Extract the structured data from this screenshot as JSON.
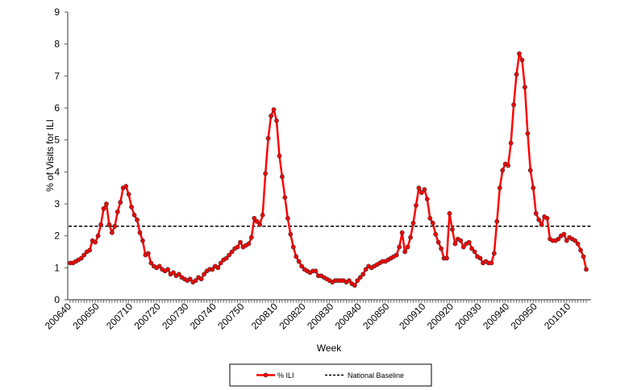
{
  "chart_data": {
    "type": "line",
    "title": "",
    "xlabel": "Week",
    "ylabel": "% of Visits for ILI",
    "ylim": [
      0,
      9
    ],
    "yticks": [
      0,
      1,
      2,
      3,
      4,
      5,
      6,
      7,
      8,
      9
    ],
    "xtick_labels": [
      "200640",
      "200650",
      "200710",
      "200720",
      "200730",
      "200740",
      "200750",
      "200810",
      "200820",
      "200830",
      "200840",
      "200850",
      "200910",
      "200920",
      "200930",
      "200940",
      "200950",
      "201010"
    ],
    "grid": false,
    "legend_position": "bottom",
    "x": [
      "200640",
      "200641",
      "200642",
      "200643",
      "200644",
      "200645",
      "200646",
      "200647",
      "200648",
      "200649",
      "200650",
      "200651",
      "200652",
      "200701",
      "200702",
      "200703",
      "200704",
      "200705",
      "200706",
      "200707",
      "200708",
      "200709",
      "200710",
      "200711",
      "200712",
      "200713",
      "200714",
      "200715",
      "200716",
      "200717",
      "200718",
      "200719",
      "200720",
      "200721",
      "200722",
      "200723",
      "200724",
      "200725",
      "200726",
      "200727",
      "200728",
      "200729",
      "200730",
      "200731",
      "200732",
      "200733",
      "200734",
      "200735",
      "200736",
      "200737",
      "200738",
      "200739",
      "200740",
      "200741",
      "200742",
      "200743",
      "200744",
      "200745",
      "200746",
      "200747",
      "200748",
      "200749",
      "200750",
      "200751",
      "200752",
      "200801",
      "200802",
      "200803",
      "200804",
      "200805",
      "200806",
      "200807",
      "200808",
      "200809",
      "200810",
      "200811",
      "200812",
      "200813",
      "200814",
      "200815",
      "200816",
      "200817",
      "200818",
      "200819",
      "200820",
      "200821",
      "200822",
      "200823",
      "200824",
      "200825",
      "200826",
      "200827",
      "200828",
      "200829",
      "200830",
      "200831",
      "200832",
      "200833",
      "200834",
      "200835",
      "200836",
      "200837",
      "200838",
      "200839",
      "200840",
      "200841",
      "200842",
      "200843",
      "200844",
      "200845",
      "200846",
      "200847",
      "200848",
      "200849",
      "200850",
      "200851",
      "200852",
      "200853",
      "200901",
      "200902",
      "200903",
      "200904",
      "200905",
      "200906",
      "200907",
      "200908",
      "200909",
      "200910",
      "200911",
      "200912",
      "200913",
      "200914",
      "200915",
      "200916",
      "200917",
      "200918",
      "200919",
      "200920",
      "200921",
      "200922",
      "200923",
      "200924",
      "200925",
      "200926",
      "200927",
      "200928",
      "200929",
      "200930",
      "200931",
      "200932",
      "200933",
      "200934",
      "200935",
      "200936",
      "200937",
      "200938",
      "200939",
      "200940",
      "200941",
      "200942",
      "200943",
      "200944",
      "200945",
      "200946",
      "200947",
      "200948",
      "200949",
      "200950",
      "200951",
      "200952",
      "201001",
      "201002",
      "201003",
      "201004",
      "201005",
      "201006",
      "201007",
      "201008",
      "201009",
      "201010",
      "201011",
      "201012",
      "201013",
      "201014",
      "201015",
      "201016"
    ],
    "series": [
      {
        "name": "% ILI",
        "color": "#ff0000",
        "marker_color": "#ff0000",
        "values": [
          1.15,
          1.15,
          1.2,
          1.25,
          1.3,
          1.4,
          1.5,
          1.55,
          1.85,
          1.8,
          2.0,
          2.35,
          2.85,
          3.0,
          2.35,
          2.1,
          2.3,
          2.75,
          3.05,
          3.5,
          3.55,
          3.3,
          2.9,
          2.65,
          2.5,
          2.1,
          1.85,
          1.4,
          1.45,
          1.15,
          1.05,
          1.0,
          1.05,
          0.95,
          0.9,
          0.95,
          0.8,
          0.85,
          0.75,
          0.8,
          0.7,
          0.65,
          0.6,
          0.65,
          0.55,
          0.6,
          0.7,
          0.65,
          0.8,
          0.9,
          0.95,
          0.95,
          1.05,
          1.0,
          1.15,
          1.25,
          1.3,
          1.4,
          1.5,
          1.6,
          1.65,
          1.8,
          1.65,
          1.7,
          1.75,
          1.95,
          2.55,
          2.45,
          2.35,
          2.65,
          3.95,
          5.05,
          5.75,
          5.95,
          5.6,
          4.5,
          3.85,
          3.2,
          2.55,
          2.05,
          1.65,
          1.35,
          1.2,
          1.05,
          0.95,
          0.9,
          0.85,
          0.9,
          0.9,
          0.75,
          0.75,
          0.7,
          0.65,
          0.6,
          0.55,
          0.6,
          0.6,
          0.6,
          0.6,
          0.55,
          0.6,
          0.5,
          0.45,
          0.6,
          0.7,
          0.8,
          0.95,
          1.05,
          1.0,
          1.05,
          1.1,
          1.15,
          1.2,
          1.2,
          1.25,
          1.3,
          1.35,
          1.4,
          1.65,
          2.1,
          1.5,
          1.65,
          1.95,
          2.4,
          2.95,
          3.5,
          3.35,
          3.45,
          3.15,
          2.55,
          2.4,
          2.05,
          1.8,
          1.6,
          1.3,
          1.3,
          2.7,
          2.2,
          1.75,
          1.9,
          1.85,
          1.65,
          1.75,
          1.8,
          1.6,
          1.5,
          1.35,
          1.3,
          1.15,
          1.2,
          1.15,
          1.15,
          1.45,
          2.45,
          3.5,
          4.05,
          4.25,
          4.2,
          4.9,
          6.1,
          7.05,
          7.7,
          7.5,
          6.65,
          5.2,
          4.05,
          3.5,
          2.7,
          2.5,
          2.35,
          2.6,
          2.55,
          1.9,
          1.85,
          1.85,
          1.9,
          2.0,
          2.05,
          1.85,
          1.95,
          1.9,
          1.85,
          1.75,
          1.55,
          1.35,
          0.95
        ]
      },
      {
        "name": "National Baseline",
        "color": "#000000",
        "style": "dashed",
        "constant": 2.3
      }
    ]
  }
}
